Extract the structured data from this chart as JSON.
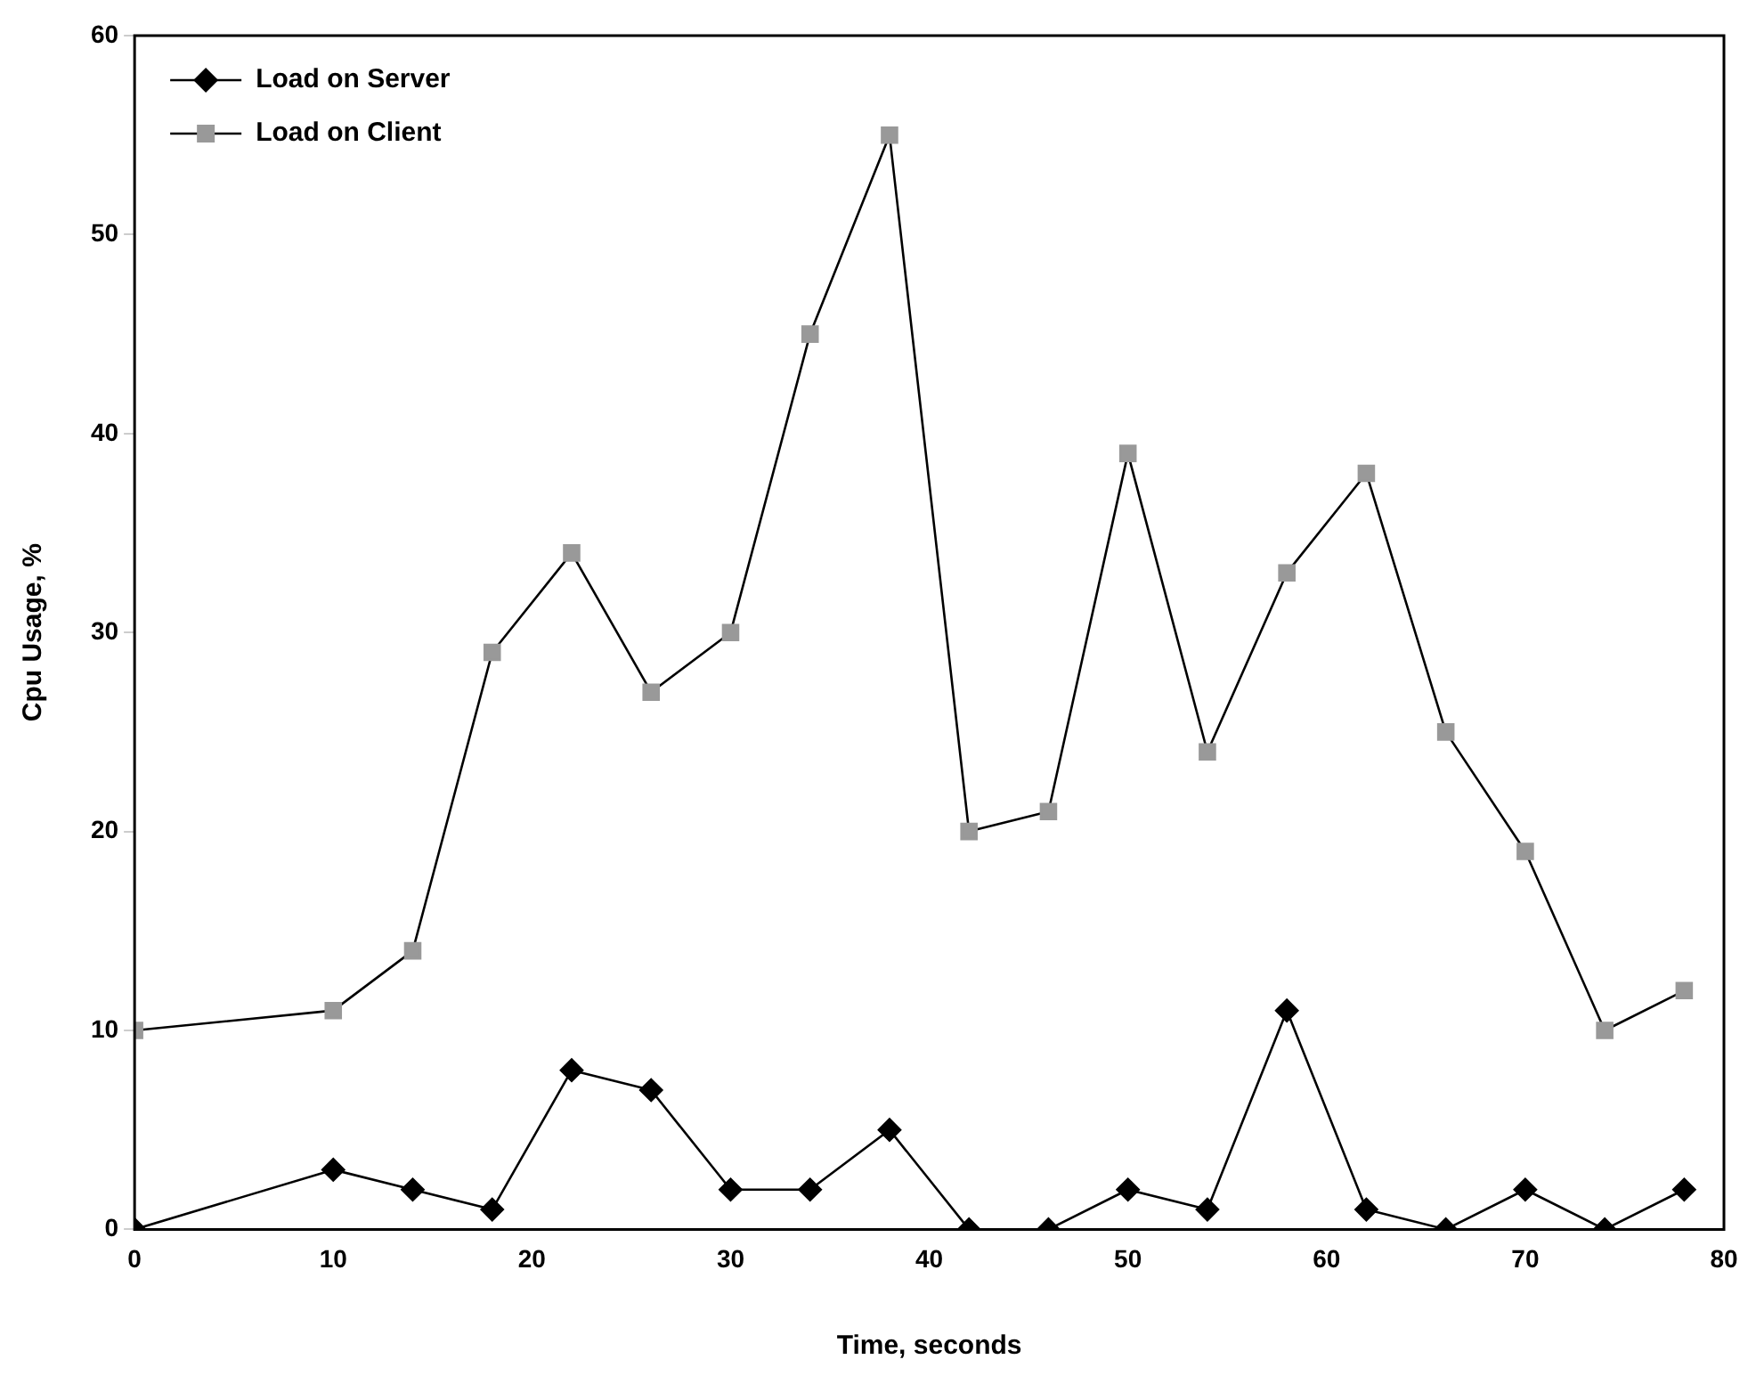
{
  "chart_data": {
    "type": "line",
    "xlabel": "Time, seconds",
    "ylabel": "Cpu Usage, %",
    "x": [
      0,
      10,
      14,
      18,
      22,
      26,
      30,
      34,
      38,
      42,
      46,
      50,
      54,
      58,
      62,
      66,
      70,
      74,
      78
    ],
    "series": [
      {
        "name": "Load on Server",
        "color": "#000000",
        "marker": "diamond",
        "values": [
          0,
          3,
          2,
          1,
          8,
          7,
          2,
          2,
          5,
          0,
          0,
          2,
          1,
          11,
          1,
          0,
          2,
          0,
          2
        ]
      },
      {
        "name": "Load on Client",
        "color": "#999999",
        "marker": "square",
        "values": [
          10,
          11,
          14,
          29,
          34,
          27,
          30,
          45,
          55,
          20,
          21,
          39,
          24,
          33,
          38,
          25,
          19,
          10,
          12
        ]
      }
    ],
    "xlim": [
      0,
      80
    ],
    "xticks": [
      0,
      10,
      20,
      30,
      40,
      50,
      60,
      70,
      80
    ],
    "ylim": [
      0,
      60
    ],
    "yticks": [
      0,
      10,
      20,
      30,
      40,
      50,
      60
    ],
    "grid": false,
    "legend": "top left"
  }
}
